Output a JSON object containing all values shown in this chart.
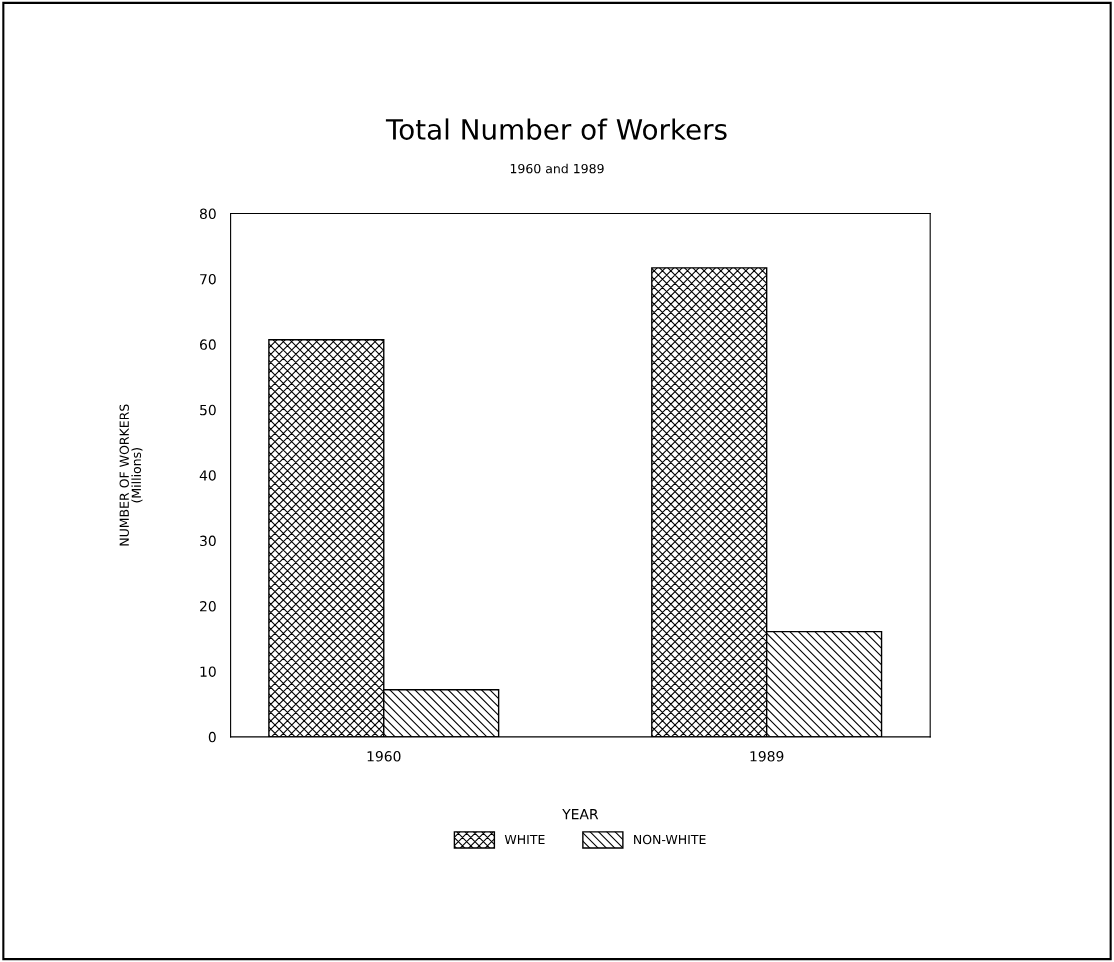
{
  "chart_data": {
    "type": "bar",
    "title": "Total Number of Workers",
    "subtitle": "1960 and 1989",
    "xlabel": "YEAR",
    "ylabel": "NUMBER OF WORKERS\n(Millions)",
    "categories": [
      "1960",
      "1989"
    ],
    "series": [
      {
        "name": "WHITE",
        "color": "#000000",
        "values": [
          60.7,
          71.7
        ]
      },
      {
        "name": "NON-WHITE",
        "color": "#000000",
        "values": [
          7.2,
          16.1
        ]
      }
    ],
    "ylim": [
      0,
      80
    ],
    "yticks": [
      0,
      10,
      20,
      30,
      40,
      50,
      60,
      70,
      80
    ],
    "grid": false,
    "legend": "bottom"
  }
}
